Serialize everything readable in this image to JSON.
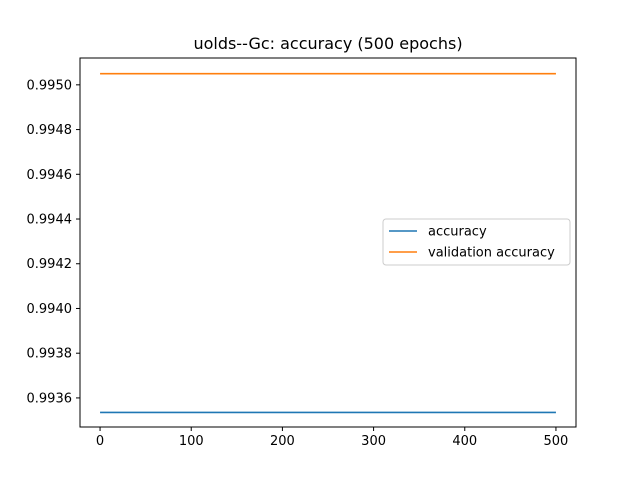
{
  "chart_data": {
    "type": "line",
    "title": "uolds--Gc: accuracy (500 epochs)",
    "xlabel": "",
    "ylabel": "",
    "xlim": [
      -22,
      522
    ],
    "ylim": [
      0.99347,
      0.99512
    ],
    "x_ticks": [
      0,
      100,
      200,
      300,
      400,
      500
    ],
    "y_ticks": [
      0.9936,
      0.9938,
      0.994,
      0.9942,
      0.9944,
      0.9946,
      0.9948,
      0.995
    ],
    "y_tick_labels": [
      "0.9936",
      "0.9938",
      "0.9940",
      "0.9942",
      "0.9944",
      "0.9946",
      "0.9948",
      "0.9950"
    ],
    "grid": false,
    "legend_position": "center-right",
    "series": [
      {
        "name": "accuracy",
        "color": "#1f77b4",
        "x": [
          0,
          500
        ],
        "y": [
          0.993535,
          0.993535
        ]
      },
      {
        "name": "validation accuracy",
        "color": "#ff7f0e",
        "x": [
          0,
          500
        ],
        "y": [
          0.99505,
          0.99505
        ]
      }
    ]
  }
}
